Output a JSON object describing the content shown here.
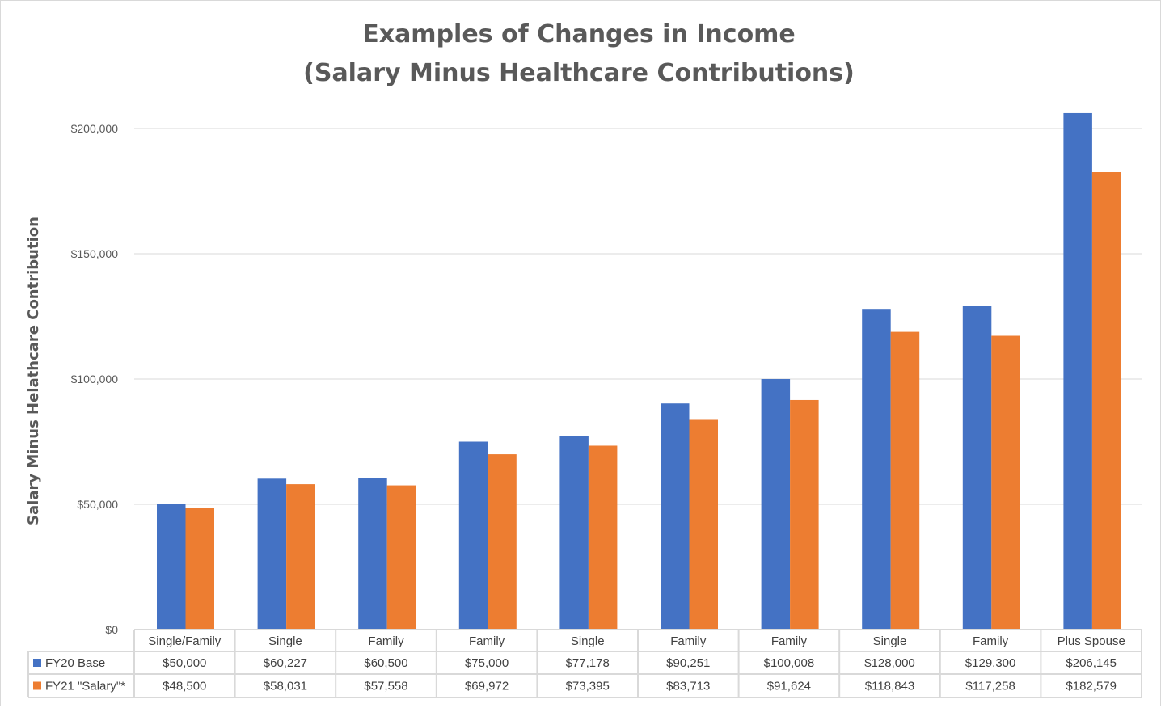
{
  "chart_data": {
    "type": "bar",
    "title_lines": [
      "Examples of Changes in Income",
      "(Salary Minus Healthcare Contributions)"
    ],
    "xlabel": "",
    "ylabel": "Salary Minus Helathcare Contribution",
    "ylim": [
      0,
      200000
    ],
    "yticks": [
      0,
      50000,
      100000,
      150000,
      200000
    ],
    "ytick_labels": [
      "$0",
      "$50,000",
      "$100,000",
      "$150,000",
      "$200,000"
    ],
    "grid": true,
    "legend": "data-table",
    "categories": [
      "Single/Family",
      "Single",
      "Family",
      "Family",
      "Single",
      "Family",
      "Family",
      "Single",
      "Family",
      "Plus Spouse"
    ],
    "series": [
      {
        "name": "FY20 Base",
        "color": "#4472C4",
        "values": [
          50000,
          60227,
          60500,
          75000,
          77178,
          90251,
          100008,
          128000,
          129300,
          206145
        ],
        "labels": [
          "$50,000",
          "$60,227",
          "$60,500",
          "$75,000",
          "$77,178",
          "$90,251",
          "$100,008",
          "$128,000",
          "$129,300",
          "$206,145"
        ]
      },
      {
        "name": "FY21 \"Salary\"*",
        "color": "#ED7D31",
        "values": [
          48500,
          58031,
          57558,
          69972,
          73395,
          83713,
          91624,
          118843,
          117258,
          182579
        ],
        "labels": [
          "$48,500",
          "$58,031",
          "$57,558",
          "$69,972",
          "$73,395",
          "$83,713",
          "$91,624",
          "$118,843",
          "$117,258",
          "$182,579"
        ]
      }
    ]
  }
}
